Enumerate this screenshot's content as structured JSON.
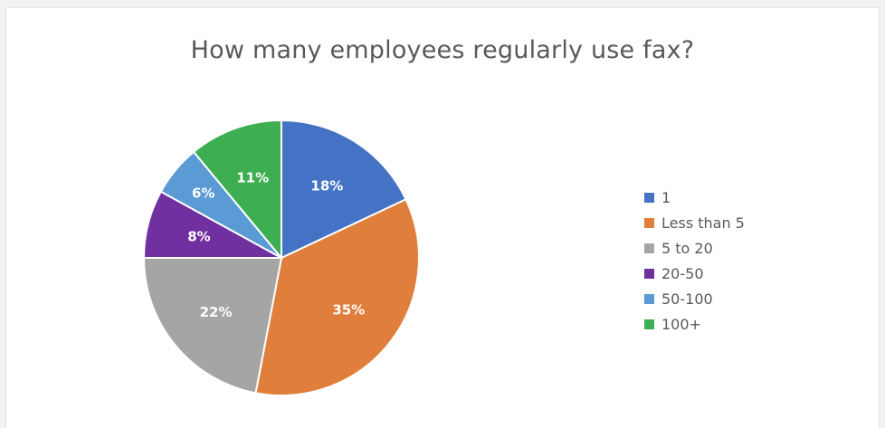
{
  "chart_data": {
    "type": "pie",
    "title": "How many employees regularly use fax?",
    "categories": [
      "1",
      "Less than 5",
      "5 to 20",
      "20-50",
      "50-100",
      "100+"
    ],
    "values": [
      18,
      35,
      22,
      8,
      6,
      11
    ],
    "labels": [
      "18%",
      "35%",
      "22%",
      "8%",
      "6%",
      "11%"
    ],
    "colors": [
      "#4472C4",
      "#E07F3C",
      "#A5A5A5",
      "#7030A0",
      "#5B9BD5",
      "#3DAE52"
    ],
    "legend_position": "right"
  }
}
